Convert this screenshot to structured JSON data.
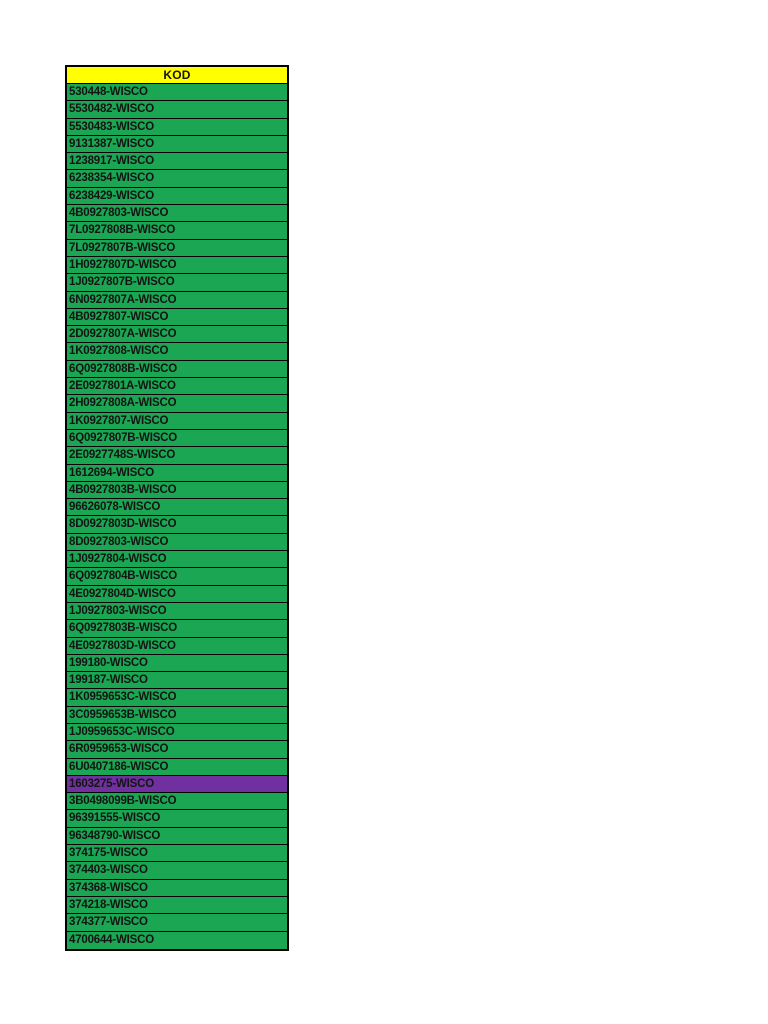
{
  "colors": {
    "header_bg": "#FFFF00",
    "row_bg": "#1AA653",
    "highlight_bg": "#7030A0",
    "text": "#141414"
  },
  "table": {
    "header": "KOD",
    "highlight_index": 40,
    "rows": [
      "530448-WISCO",
      "5530482-WISCO",
      "5530483-WISCO",
      "9131387-WISCO",
      "1238917-WISCO",
      "6238354-WISCO",
      "6238429-WISCO",
      "4B0927803-WISCO",
      "7L0927808B-WISCO",
      "7L0927807B-WISCO",
      "1H0927807D-WISCO",
      "1J0927807B-WISCO",
      "6N0927807A-WISCO",
      "4B0927807-WISCO",
      "2D0927807A-WISCO",
      "1K0927808-WISCO",
      "6Q0927808B-WISCO",
      "2E0927801A-WISCO",
      "2H0927808A-WISCO",
      "1K0927807-WISCO",
      "6Q0927807B-WISCO",
      "2E0927748S-WISCO",
      "1612694-WISCO",
      "4B0927803B-WISCO",
      "96626078-WISCO",
      "8D0927803D-WISCO",
      "8D0927803-WISCO",
      "1J0927804-WISCO",
      "6Q0927804B-WISCO",
      "4E0927804D-WISCO",
      "1J0927803-WISCO",
      "6Q0927803B-WISCO",
      "4E0927803D-WISCO",
      "199180-WISCO",
      "199187-WISCO",
      "1K0959653C-WISCO",
      "3C0959653B-WISCO",
      "1J0959653C-WISCO",
      "6R0959653-WISCO",
      "6U0407186-WISCO",
      "1603275-WISCO",
      "3B0498099B-WISCO",
      "96391555-WISCO",
      "96348790-WISCO",
      "374175-WISCO",
      "374403-WISCO",
      "374368-WISCO",
      "374218-WISCO",
      "374377-WISCO",
      "4700644-WISCO"
    ]
  }
}
